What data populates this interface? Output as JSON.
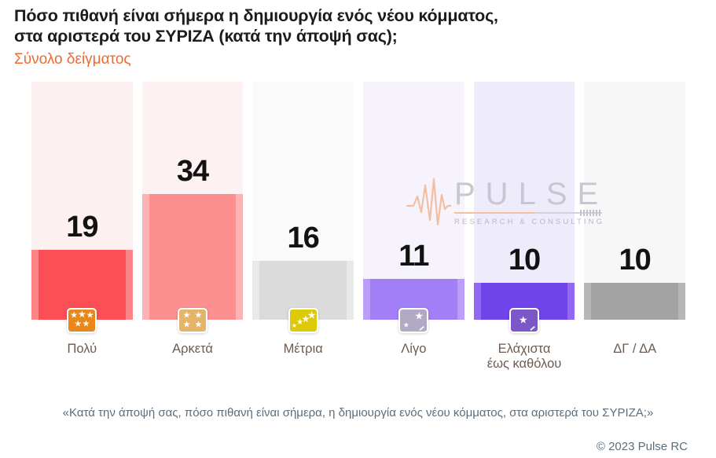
{
  "header": {
    "title_line1": "Πόσο πιθανή είναι σήμερα η δημιουργία ενός νέου κόμματος,",
    "title_line2": "στα αριστερά του ΣΥΡΙΖΑ (κατά την άποψή σας);",
    "subtitle": "Σύνολο δείγματος",
    "subtitle_color": "#ed6a33"
  },
  "chart_data": {
    "type": "bar",
    "title": "Πόσο πιθανή είναι σήμερα η δημιουργία ενός νέου κόμματος, στα αριστερά του ΣΥΡΙΖΑ (κατά την άποψή σας);",
    "subtitle": "Σύνολο δείγματος",
    "unit": "%",
    "ylim": [
      0,
      64
    ],
    "grid": false,
    "legend": false,
    "categories": [
      "Πολύ",
      "Αρκετά",
      "Μέτρια",
      "Λίγο",
      "Ελάχιστα έως καθόλου",
      "ΔΓ / ΔΑ"
    ],
    "values": [
      19,
      34,
      16,
      11,
      10,
      10
    ],
    "bars": [
      {
        "label": "Πολύ",
        "value": 19,
        "color": "#fb4f55",
        "edge_color": "#fd8588",
        "track_color": "#fdf0f1",
        "icon": "five-stars-icon",
        "icon_color": "#e8871b"
      },
      {
        "label": "Αρκετά",
        "value": 34,
        "color": "#fc8f90",
        "edge_color": "#fdb3b4",
        "track_color": "#fdf1f2",
        "icon": "four-stars-grid-icon",
        "icon_color": "#e3b469"
      },
      {
        "label": "Μέτρια",
        "value": 16,
        "color": "#dbdbdb",
        "edge_color": "#e9e9e9",
        "track_color": "#fafafa",
        "icon": "rising-stars-icon",
        "icon_color": "#ddc905"
      },
      {
        "label": "Λίγο",
        "value": 11,
        "color": "#a27ff6",
        "edge_color": "#bb9ef9",
        "track_color": "#f6f3fc",
        "icon": "two-stars-icon",
        "icon_color": "#b2aac5"
      },
      {
        "label": "Ελάχιστα έως καθόλου",
        "value": 10,
        "color": "#6f45e9",
        "edge_color": "#9168f1",
        "track_color": "#eeebfa",
        "icon": "one-star-icon",
        "icon_color": "#7b57c8"
      },
      {
        "label": "ΔΓ / ΔΑ",
        "value": 10,
        "color": "#a3a3a3",
        "edge_color": "#b7b7b7",
        "track_color": "#f7f7f7",
        "icon": null,
        "icon_color": null
      }
    ]
  },
  "watermark": {
    "brand": "PULSE",
    "tagline": "RESEARCH & CONSULTING",
    "accent_color": "#f0ae85",
    "text_color": "#c8c6d0"
  },
  "footer": {
    "caption": "«Κατά την άποψή σας, πόσο πιθανή είναι σήμερα, η δημιουργία ενός νέου κόμματος, στα αριστερά του ΣΥΡΙΖΑ;»",
    "copyright": "© 2023 Pulse RC"
  }
}
